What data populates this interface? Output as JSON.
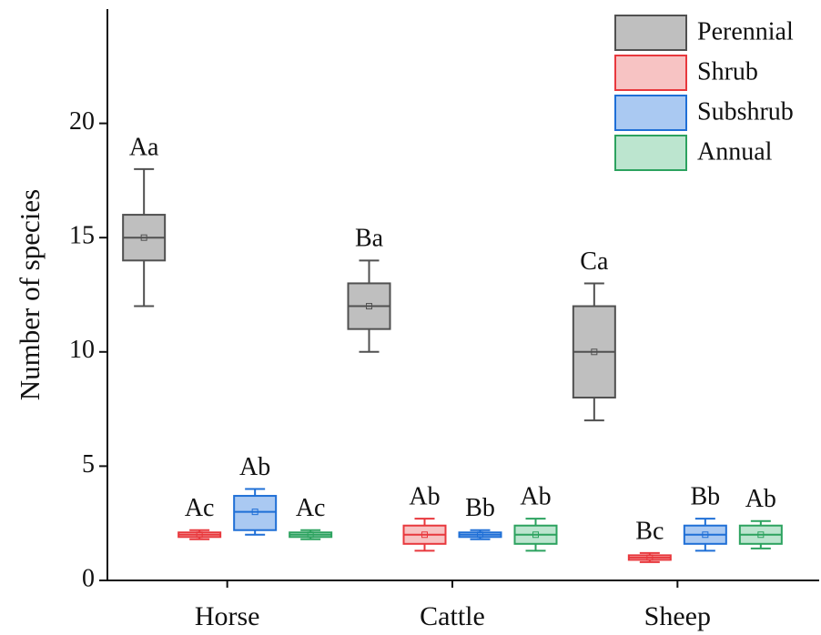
{
  "chart_data": {
    "type": "box",
    "y_label": "Number of species",
    "categories": [
      "Horse",
      "Cattle",
      "Sheep"
    ],
    "ylim": [
      0,
      25
    ],
    "yticks": [
      0,
      5,
      10,
      15,
      20
    ],
    "legend": "upper right",
    "series": [
      {
        "name": "Perennial",
        "color": "#505050",
        "fill": "#bfbfbf",
        "min": [
          12,
          10,
          7
        ],
        "q1": [
          14,
          11,
          8
        ],
        "median": [
          15,
          12,
          10
        ],
        "q3": [
          16,
          13,
          12
        ],
        "max": [
          18,
          14,
          13
        ],
        "mean": [
          15,
          12,
          10
        ],
        "labels": [
          "Aa",
          "Ba",
          "Ca"
        ]
      },
      {
        "name": "Shrub",
        "color": "#e8383d",
        "fill": "#f7c3c3",
        "min": [
          1.8,
          1.3,
          0.8
        ],
        "q1": [
          1.9,
          1.6,
          0.9
        ],
        "median": [
          2,
          2,
          1
        ],
        "q3": [
          2.1,
          2.4,
          1.1
        ],
        "max": [
          2.2,
          2.7,
          1.2
        ],
        "mean": [
          2,
          2,
          1
        ],
        "labels": [
          "Ac",
          "Ab",
          "Bc"
        ]
      },
      {
        "name": "Subshrub",
        "color": "#1f6fd6",
        "fill": "#aac9f2",
        "min": [
          2,
          1.8,
          1.3
        ],
        "q1": [
          2.2,
          1.9,
          1.6
        ],
        "median": [
          3,
          2,
          2
        ],
        "q3": [
          3.7,
          2.1,
          2.4
        ],
        "max": [
          4,
          2.2,
          2.7
        ],
        "mean": [
          3,
          2,
          2
        ],
        "labels": [
          "Ab",
          "Bb",
          "Bb"
        ]
      },
      {
        "name": "Annual",
        "color": "#2ca25f",
        "fill": "#bce5cf",
        "min": [
          1.8,
          1.3,
          1.4
        ],
        "q1": [
          1.9,
          1.6,
          1.6
        ],
        "median": [
          2,
          2,
          2
        ],
        "q3": [
          2.1,
          2.4,
          2.4
        ],
        "max": [
          2.2,
          2.7,
          2.6
        ],
        "mean": [
          2,
          2,
          2
        ],
        "labels": [
          "Ac",
          "Ab",
          "Ab"
        ]
      }
    ]
  }
}
